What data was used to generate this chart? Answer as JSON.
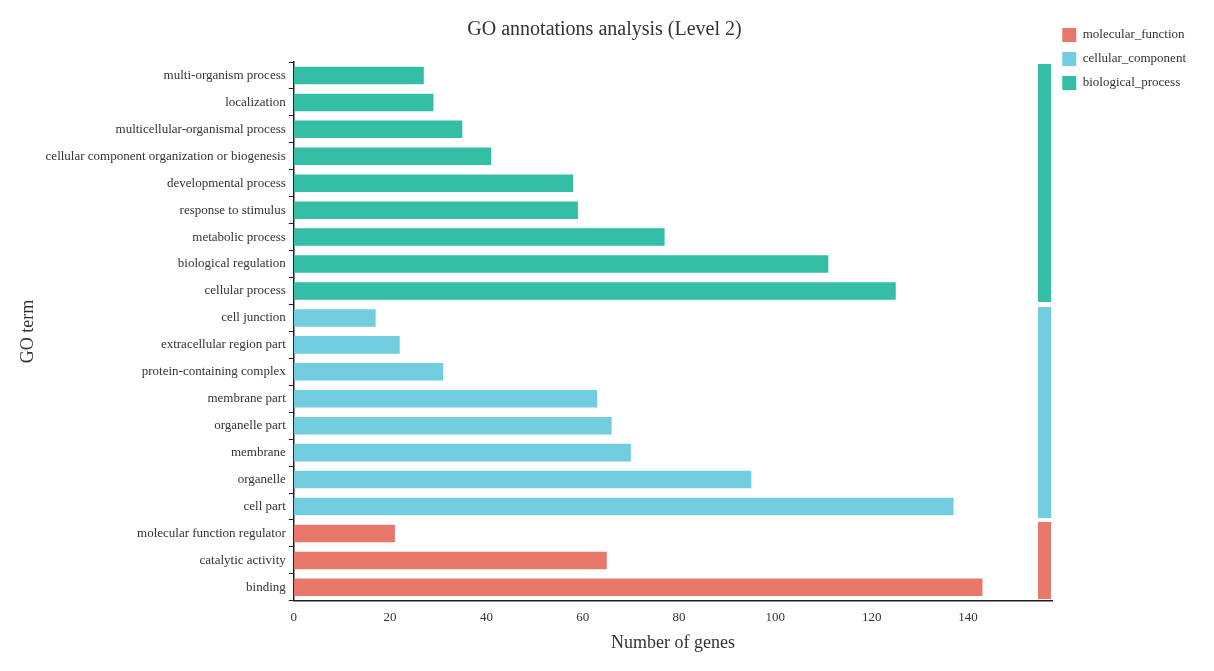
{
  "chart_data": {
    "type": "bar",
    "orientation": "horizontal",
    "title": "GO annotations analysis (Level 2)",
    "xlabel": "Number of genes",
    "ylabel": "GO term",
    "categories": [
      "multi-organism process",
      "localization",
      "multicellular-organismal process",
      "cellular component organization or biogenesis",
      "developmental process",
      "response to stimulus",
      "metabolic process",
      "biological regulation",
      "cellular process",
      "cell junction",
      "extracellular region part",
      "protein-containing complex",
      "membrane part",
      "organelle part",
      "membrane",
      "organelle",
      "cell part",
      "molecular function regulator",
      "catalytic activity",
      "binding"
    ],
    "series": [
      {
        "name": "molecular_function",
        "color": "#e8786a",
        "values": [
          null,
          null,
          null,
          null,
          null,
          null,
          null,
          null,
          null,
          null,
          null,
          null,
          null,
          null,
          null,
          null,
          null,
          21,
          65,
          143
        ]
      },
      {
        "name": "cellular_component",
        "color": "#72cde0",
        "values": [
          null,
          null,
          null,
          null,
          null,
          null,
          null,
          null,
          null,
          17,
          22,
          31,
          63,
          66,
          70,
          95,
          137,
          null,
          null,
          null
        ]
      },
      {
        "name": "biological_process",
        "color": "#34bea5",
        "values": [
          27,
          29,
          35,
          41,
          58,
          59,
          77,
          111,
          125,
          null,
          null,
          null,
          null,
          null,
          null,
          null,
          null,
          null,
          null,
          null
        ]
      }
    ],
    "xlim": [
      0,
      157.5
    ],
    "xticks": [
      0,
      20,
      40,
      60,
      80,
      100,
      120,
      140
    ],
    "grid": false,
    "legend": "top right"
  }
}
